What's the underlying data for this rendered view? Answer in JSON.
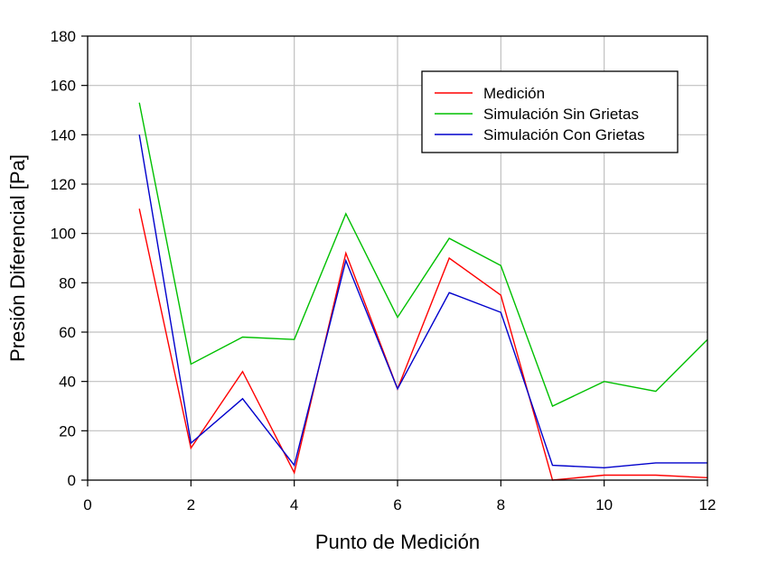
{
  "chart_data": {
    "type": "line",
    "title": "",
    "xlabel": "Punto de Medición",
    "ylabel": "Presión Diferencial [Pa]",
    "xlim": [
      0,
      12
    ],
    "ylim": [
      0,
      180
    ],
    "xticks": [
      0,
      2,
      4,
      6,
      8,
      10,
      12
    ],
    "yticks": [
      0,
      20,
      40,
      60,
      80,
      100,
      120,
      140,
      160,
      180
    ],
    "grid": true,
    "legend_position": "top-right",
    "x": [
      1,
      2,
      3,
      4,
      5,
      6,
      7,
      8,
      9,
      10,
      11,
      12
    ],
    "series": [
      {
        "name": "Medición",
        "color": "#ff0000",
        "values": [
          110,
          13,
          44,
          3,
          92,
          37,
          90,
          75,
          0,
          2,
          2,
          1
        ]
      },
      {
        "name": "Simulación Sin Grietas",
        "color": "#00c000",
        "values": [
          153,
          47,
          58,
          57,
          108,
          66,
          98,
          87,
          30,
          40,
          36,
          57
        ]
      },
      {
        "name": "Simulación Con Grietas",
        "color": "#0000cc",
        "values": [
          140,
          15,
          33,
          6,
          89,
          37,
          76,
          68,
          6,
          5,
          7,
          7
        ]
      }
    ]
  }
}
